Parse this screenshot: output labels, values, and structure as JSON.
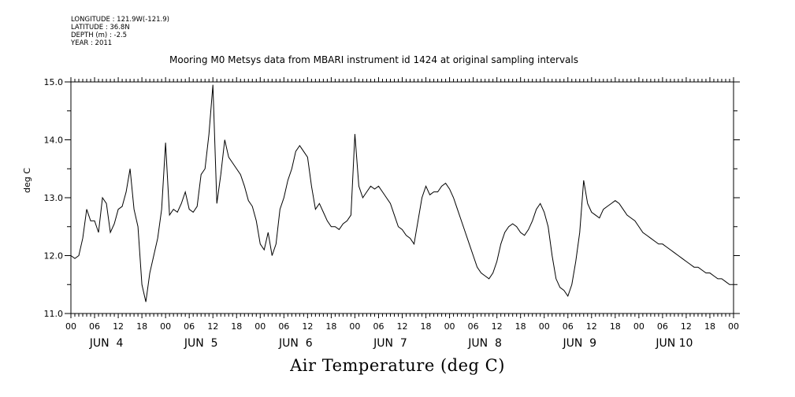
{
  "metadata_lines": [
    "LONGITUDE : 121.9W(-121.9)",
    "LATITUDE : 36.8N",
    "DEPTH (m) : -2.5",
    "YEAR : 2011"
  ],
  "chart_data": {
    "type": "line",
    "title": "Mooring M0 Metsys data from MBARI instrument id 1424 at original sampling intervals",
    "xlabel": "Air Temperature (deg C)",
    "ylabel": "deg C",
    "ylim": [
      11.0,
      15.0
    ],
    "xlim_hours": [
      0,
      168
    ],
    "y_ticks": [
      "11.0",
      "12.0",
      "13.0",
      "14.0",
      "15.0"
    ],
    "x_hour_labels": [
      "00",
      "06",
      "12",
      "18",
      "00",
      "06",
      "12",
      "18",
      "00",
      "06",
      "12",
      "18",
      "00",
      "06",
      "12",
      "18",
      "00",
      "06",
      "12",
      "18",
      "00",
      "06",
      "12",
      "18",
      "00",
      "06",
      "12",
      "18",
      "00"
    ],
    "x_day_labels": [
      "JUN  4",
      "JUN  5",
      "JUN  6",
      "JUN  7",
      "JUN  8",
      "JUN  9",
      "JUN 10"
    ],
    "grid": false,
    "series": [
      {
        "x": [
          0,
          1,
          2,
          3,
          4,
          5,
          6,
          7,
          8,
          9,
          10,
          11,
          12,
          13,
          14,
          15,
          16,
          17,
          18,
          19,
          20,
          21,
          22,
          23,
          24,
          25,
          26,
          27,
          28,
          29,
          30,
          31,
          32,
          33,
          34,
          35,
          36,
          37,
          38,
          39,
          40,
          41,
          42,
          43,
          44,
          45,
          46,
          47,
          48,
          49,
          50,
          51,
          52,
          53,
          54,
          55,
          56,
          57,
          58,
          59,
          60,
          61,
          62,
          63,
          64,
          65,
          66,
          67,
          68,
          69,
          70,
          71,
          72,
          73,
          74,
          75,
          76,
          77,
          78,
          79,
          80,
          81,
          82,
          83,
          84,
          85,
          86,
          87,
          88,
          89,
          90,
          91,
          92,
          93,
          94,
          95,
          96,
          97,
          98,
          99,
          100,
          101,
          102,
          103,
          104,
          105,
          106,
          107,
          108,
          109,
          110,
          111,
          112,
          113,
          114,
          115,
          116,
          117,
          118,
          119,
          120,
          121,
          122,
          123,
          124,
          125,
          126,
          127,
          128,
          129,
          130,
          131,
          132,
          133,
          134,
          135,
          136,
          137,
          138,
          139,
          140,
          141,
          142,
          143,
          144,
          145,
          146,
          147,
          148,
          149,
          150,
          151,
          152,
          153,
          154,
          155,
          156,
          157,
          158,
          159,
          160,
          161,
          162,
          163,
          164,
          165,
          166,
          167,
          168
        ],
        "values": [
          12.0,
          11.95,
          12.0,
          12.3,
          12.8,
          12.6,
          12.6,
          12.4,
          13.0,
          12.9,
          12.4,
          12.55,
          12.8,
          12.85,
          13.1,
          13.5,
          12.8,
          12.5,
          11.5,
          11.2,
          11.7,
          12.0,
          12.3,
          12.8,
          13.95,
          12.7,
          12.8,
          12.75,
          12.9,
          13.1,
          12.8,
          12.75,
          12.85,
          13.4,
          13.5,
          14.1,
          14.95,
          12.9,
          13.4,
          14.0,
          13.7,
          13.6,
          13.5,
          13.4,
          13.2,
          12.95,
          12.85,
          12.6,
          12.2,
          12.1,
          12.4,
          12.0,
          12.2,
          12.8,
          13.0,
          13.3,
          13.5,
          13.8,
          13.9,
          13.8,
          13.7,
          13.2,
          12.8,
          12.9,
          12.75,
          12.6,
          12.5,
          12.5,
          12.45,
          12.55,
          12.6,
          12.7,
          14.1,
          13.2,
          13.0,
          13.1,
          13.2,
          13.15,
          13.2,
          13.1,
          13.0,
          12.9,
          12.7,
          12.5,
          12.45,
          12.35,
          12.3,
          12.2,
          12.6,
          13.0,
          13.2,
          13.05,
          13.1,
          13.1,
          13.2,
          13.25,
          13.15,
          13.0,
          12.8,
          12.6,
          12.4,
          12.2,
          12.0,
          11.8,
          11.7,
          11.65,
          11.6,
          11.7,
          11.9,
          12.2,
          12.4,
          12.5,
          12.55,
          12.5,
          12.4,
          12.35,
          12.45,
          12.6,
          12.8,
          12.9,
          12.75,
          12.5,
          12.0,
          11.6,
          11.45,
          11.4,
          11.3,
          11.5,
          11.9,
          12.4,
          13.3,
          12.9,
          12.75,
          12.7,
          12.65,
          12.8,
          12.85,
          12.9,
          12.95,
          12.9,
          12.8,
          12.7,
          12.65,
          12.6,
          12.5,
          12.4,
          12.35,
          12.3,
          12.25,
          12.2,
          12.2,
          12.15,
          12.1,
          12.05,
          12.0,
          11.95,
          11.9,
          11.85,
          11.8,
          11.8,
          11.75,
          11.7,
          11.7,
          11.65,
          11.6,
          11.6,
          11.55,
          11.5,
          11.5
        ]
      }
    ]
  }
}
